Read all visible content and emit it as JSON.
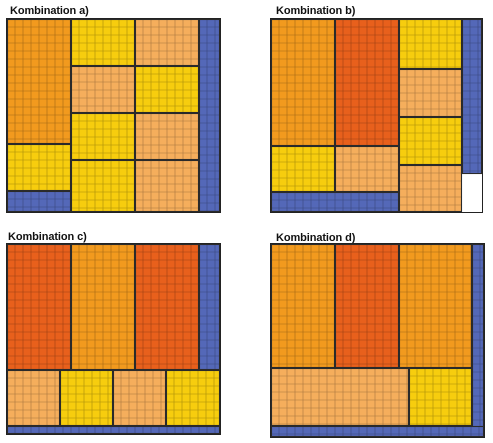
{
  "colors": {
    "dark_orange": "#E8601C",
    "orange": "#F29A1E",
    "light_orange": "#F5AE5C",
    "yellow": "#F7CD0E",
    "blue": "#5468B8"
  },
  "panels": [
    {
      "title": "Kombination a)",
      "fields": [
        {
          "color": "orange"
        },
        {
          "color": "yellow"
        },
        {
          "color": "light_orange"
        },
        {
          "color": "light_orange"
        },
        {
          "color": "yellow"
        },
        {
          "color": "yellow"
        },
        {
          "color": "light_orange"
        },
        {
          "color": "yellow"
        },
        {
          "color": "light_orange"
        },
        {
          "color": "yellow"
        },
        {
          "color": "blue"
        },
        {
          "color": "blue"
        }
      ]
    },
    {
      "title": "Kombination b)",
      "fields": [
        {
          "color": "orange"
        },
        {
          "color": "dark_orange"
        },
        {
          "color": "yellow"
        },
        {
          "color": "light_orange"
        },
        {
          "color": "yellow"
        },
        {
          "color": "light_orange"
        },
        {
          "color": "yellow"
        },
        {
          "color": "light_orange"
        },
        {
          "color": "blue"
        },
        {
          "color": "blue"
        }
      ]
    },
    {
      "title": "Kombination c)",
      "fields": [
        {
          "color": "dark_orange"
        },
        {
          "color": "orange"
        },
        {
          "color": "dark_orange"
        },
        {
          "color": "light_orange"
        },
        {
          "color": "yellow"
        },
        {
          "color": "light_orange"
        },
        {
          "color": "yellow"
        },
        {
          "color": "blue"
        },
        {
          "color": "blue"
        }
      ]
    },
    {
      "title": "Kombination d)",
      "fields": [
        {
          "color": "orange"
        },
        {
          "color": "dark_orange"
        },
        {
          "color": "orange"
        },
        {
          "color": "light_orange"
        },
        {
          "color": "yellow"
        },
        {
          "color": "blue"
        },
        {
          "color": "blue"
        }
      ]
    }
  ]
}
